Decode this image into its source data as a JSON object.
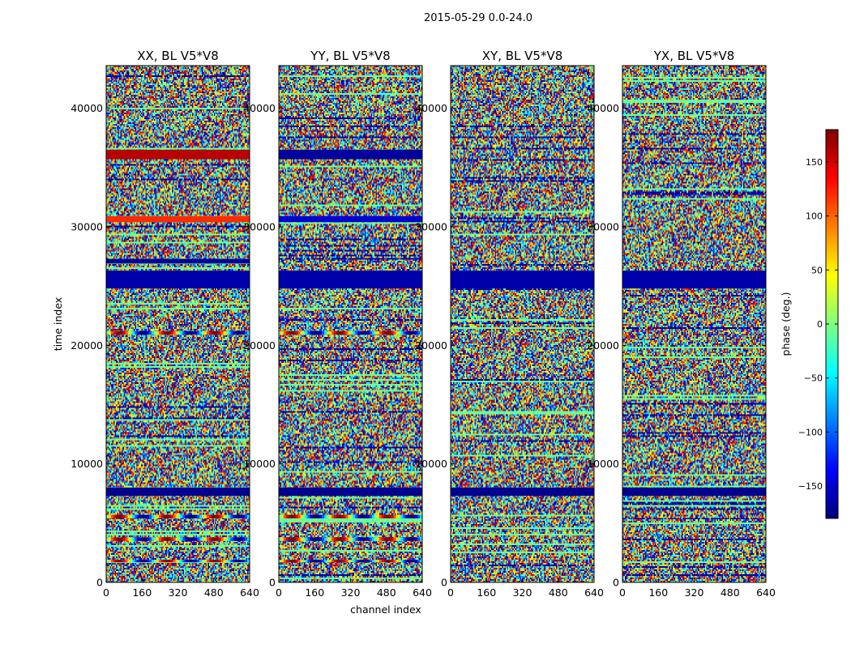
{
  "figure": {
    "suptitle": "2015-05-29 0.0-24.0"
  },
  "chart_data": [
    {
      "type": "heatmap",
      "title": "XX, BL V5*V8",
      "xlabel": "",
      "ylabel": "time index",
      "xlim": [
        0,
        640
      ],
      "ylim": [
        0,
        43600
      ],
      "xticks": [
        "0",
        "160",
        "320",
        "480",
        "640"
      ],
      "yticks": [
        "0",
        "10000",
        "20000",
        "30000",
        "40000"
      ],
      "features": [
        {
          "kind": "flat_band",
          "time_from": 35700,
          "time_to": 36500,
          "phase_deg": 160
        },
        {
          "kind": "flat_band",
          "time_from": 30400,
          "time_to": 30900,
          "phase_deg": 120
        },
        {
          "kind": "flat_band",
          "time_from": 26900,
          "time_to": 27300,
          "phase_deg": -170
        },
        {
          "kind": "flat_band",
          "time_from": 24800,
          "time_to": 26300,
          "phase_deg": -165
        },
        {
          "kind": "flat_band",
          "time_from": 7300,
          "time_to": 8000,
          "phase_deg": -175
        },
        {
          "kind": "fringe_band",
          "time_from": 20900,
          "time_to": 21200
        },
        {
          "kind": "fringe_band",
          "time_from": 5400,
          "time_to": 5700
        },
        {
          "kind": "fringe_band",
          "time_from": 3500,
          "time_to": 3800
        },
        {
          "kind": "fringe_band",
          "time_from": 1700,
          "time_to": 1900
        }
      ]
    },
    {
      "type": "heatmap",
      "title": "YY, BL V5*V8",
      "xlabel": "channel index",
      "ylabel": "",
      "xlim": [
        0,
        640
      ],
      "ylim": [
        0,
        43600
      ],
      "xticks": [
        "0",
        "160",
        "320",
        "480",
        "640"
      ],
      "yticks": [
        "0",
        "10000",
        "20000",
        "30000",
        "40000"
      ],
      "features": [
        {
          "kind": "flat_band",
          "time_from": 35700,
          "time_to": 36500,
          "phase_deg": -170
        },
        {
          "kind": "flat_band",
          "time_from": 30400,
          "time_to": 30900,
          "phase_deg": -150
        },
        {
          "kind": "flat_band",
          "time_from": 24800,
          "time_to": 26300,
          "phase_deg": -165
        },
        {
          "kind": "flat_band",
          "time_from": 7300,
          "time_to": 8000,
          "phase_deg": -175
        },
        {
          "kind": "fringe_band",
          "time_from": 20900,
          "time_to": 21200
        },
        {
          "kind": "fringe_band",
          "time_from": 5400,
          "time_to": 5700
        },
        {
          "kind": "fringe_band",
          "time_from": 3500,
          "time_to": 3800
        },
        {
          "kind": "fringe_band",
          "time_from": 1700,
          "time_to": 1900
        }
      ]
    },
    {
      "type": "heatmap",
      "title": "XY, BL V5*V8",
      "xlabel": "",
      "ylabel": "",
      "xlim": [
        0,
        640
      ],
      "ylim": [
        0,
        43600
      ],
      "xticks": [
        "0",
        "160",
        "320",
        "480",
        "640"
      ],
      "yticks": [
        "0",
        "10000",
        "20000",
        "30000",
        "40000"
      ],
      "features": [
        {
          "kind": "flat_band",
          "time_from": 24800,
          "time_to": 26300,
          "phase_deg": -165
        },
        {
          "kind": "flat_band",
          "time_from": 7300,
          "time_to": 8000,
          "phase_deg": -175
        }
      ]
    },
    {
      "type": "heatmap",
      "title": "YX, BL V5*V8",
      "xlabel": "",
      "ylabel": "",
      "xlim": [
        0,
        640
      ],
      "ylim": [
        0,
        43600
      ],
      "xticks": [
        "0",
        "160",
        "320",
        "480",
        "640"
      ],
      "yticks": [
        "0",
        "10000",
        "20000",
        "30000",
        "40000"
      ],
      "features": [
        {
          "kind": "flat_band",
          "time_from": 24800,
          "time_to": 26300,
          "phase_deg": -165
        },
        {
          "kind": "flat_band",
          "time_from": 7300,
          "time_to": 8000,
          "phase_deg": -175
        }
      ]
    }
  ],
  "colorbar": {
    "label": "phase (deg.)",
    "range": [
      -180,
      180
    ],
    "ticks": [
      "150",
      "100",
      "50",
      "0",
      "−50",
      "−100",
      "−150"
    ],
    "tick_values": [
      150,
      100,
      50,
      0,
      -50,
      -100,
      -150
    ],
    "colormap": "jet",
    "colors": [
      "#00007f",
      "#0000ff",
      "#007fff",
      "#00ffff",
      "#7fff7f",
      "#ffff00",
      "#ff7f00",
      "#ff0000",
      "#7f0000"
    ]
  },
  "grid": false
}
